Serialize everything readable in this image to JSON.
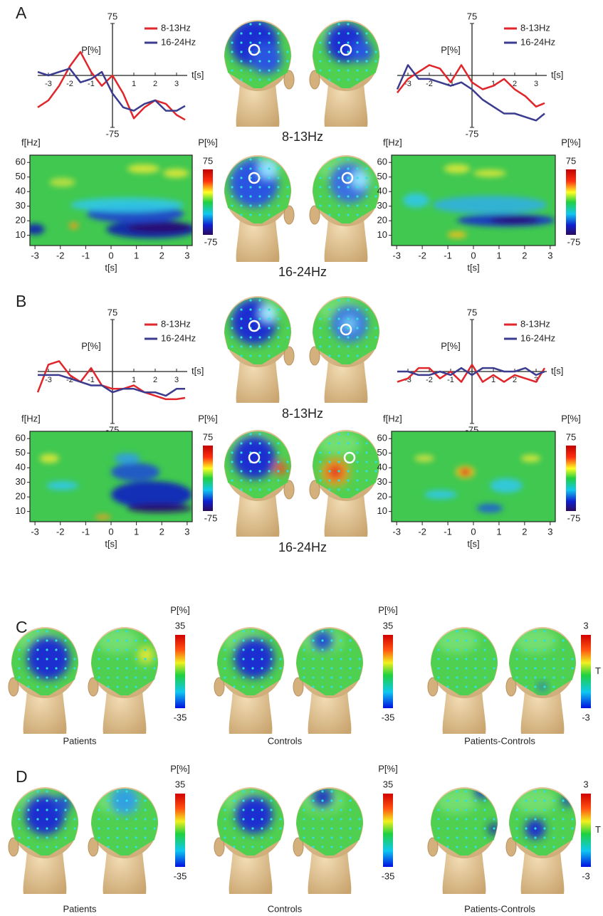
{
  "panels": [
    "A",
    "B",
    "C",
    "D"
  ],
  "band_captions": [
    "8-13Hz",
    "16-24Hz"
  ],
  "group_captions": [
    "Patients",
    "Controls",
    "Patients-Controls"
  ],
  "chart_data": [
    {
      "type": "line",
      "ylabel": "P[%]",
      "xlabel": "t[s]",
      "xlim": [
        -3.5,
        3.5
      ],
      "ylim": [
        -75,
        75
      ],
      "xticks": [
        -3,
        -2,
        -1,
        1,
        2,
        3
      ],
      "yticks": [
        -75,
        75
      ],
      "x": [
        -3.5,
        -3,
        -2.5,
        -2,
        -1.5,
        -1,
        -0.5,
        0,
        0.5,
        1,
        1.5,
        2,
        2.5,
        3,
        3.4
      ],
      "series": [
        {
          "name": "8-13Hz",
          "color": "#e0262b",
          "values": [
            -46,
            -36,
            -15,
            13,
            34,
            5,
            -15,
            0,
            -26,
            -62,
            -46,
            -36,
            -41,
            -57,
            -64
          ]
        },
        {
          "name": "16-24Hz",
          "color": "#3b3b8f",
          "values": [
            5,
            0,
            5,
            10,
            -10,
            -5,
            5,
            -26,
            -46,
            -51,
            -41,
            -36,
            -51,
            -51,
            -44
          ]
        }
      ]
    },
    {
      "type": "line",
      "ylabel": "P[%]",
      "xlabel": "t[s]",
      "xlim": [
        -3.5,
        3.5
      ],
      "ylim": [
        -75,
        75
      ],
      "xticks": [
        -3,
        -2,
        -1,
        1,
        2,
        3
      ],
      "yticks": [
        -75,
        75
      ],
      "x": [
        -3.5,
        -3,
        -2.5,
        -2,
        -1.5,
        -1,
        -0.5,
        0,
        0.5,
        1,
        1.5,
        2,
        2.5,
        3,
        3.4
      ],
      "series": [
        {
          "name": "8-13Hz",
          "color": "#e0262b",
          "values": [
            -25,
            -5,
            5,
            15,
            10,
            -10,
            15,
            -10,
            -20,
            -15,
            -5,
            -20,
            -30,
            -45,
            -40
          ]
        },
        {
          "name": "16-24Hz",
          "color": "#3b3b8f",
          "values": [
            -20,
            15,
            -5,
            -5,
            -10,
            -15,
            -10,
            -20,
            -35,
            -45,
            -55,
            -55,
            -60,
            -65,
            -55
          ]
        }
      ]
    },
    {
      "type": "heatmap",
      "xlabel": "t[s]",
      "ylabel": "f[Hz]",
      "xlim": [
        -3.2,
        3.2
      ],
      "ylim": [
        3,
        65
      ],
      "xticks": [
        -3,
        -2,
        -1,
        0,
        1,
        2,
        3
      ],
      "yticks": [
        10,
        20,
        30,
        40,
        50,
        60
      ],
      "colorbar": {
        "label": "P[%]",
        "clim": [
          -75,
          75
        ],
        "ticks": [
          -75,
          75
        ]
      }
    },
    {
      "type": "heatmap",
      "xlabel": "t[s]",
      "ylabel": "f[Hz]",
      "xlim": [
        -3.2,
        3.2
      ],
      "ylim": [
        3,
        65
      ],
      "xticks": [
        -3,
        -2,
        -1,
        0,
        1,
        2,
        3
      ],
      "yticks": [
        10,
        20,
        30,
        40,
        50,
        60
      ],
      "colorbar": {
        "label": "P[%]",
        "clim": [
          -75,
          75
        ],
        "ticks": [
          -75,
          75
        ]
      }
    },
    {
      "type": "line",
      "ylabel": "P[%]",
      "xlabel": "t[s]",
      "xlim": [
        -3.5,
        3.5
      ],
      "ylim": [
        -75,
        75
      ],
      "xticks": [
        -3,
        -2,
        -1,
        1,
        2,
        3
      ],
      "yticks": [
        -75,
        75
      ],
      "x": [
        -3.5,
        -3,
        -2.5,
        -2,
        -1.5,
        -1,
        -0.5,
        0,
        0.5,
        1,
        1.5,
        2,
        2.5,
        3,
        3.4
      ],
      "series": [
        {
          "name": "8-13Hz",
          "color": "#e0262b",
          "values": [
            -30,
            10,
            15,
            -5,
            -15,
            5,
            -20,
            -25,
            -25,
            -20,
            -30,
            -35,
            -40,
            -40,
            -38
          ]
        },
        {
          "name": "16-24Hz",
          "color": "#3b3b8f",
          "values": [
            -5,
            -5,
            -5,
            -10,
            -15,
            -20,
            -20,
            -30,
            -25,
            -25,
            -30,
            -30,
            -35,
            -25,
            -25
          ]
        }
      ]
    },
    {
      "type": "line",
      "ylabel": "P[%]",
      "xlabel": "t[s]",
      "xlim": [
        -3.5,
        3.5
      ],
      "ylim": [
        -75,
        75
      ],
      "xticks": [
        -3,
        -2,
        -1,
        1,
        2,
        3
      ],
      "yticks": [
        -75,
        75
      ],
      "x": [
        -3.5,
        -3,
        -2.5,
        -2,
        -1.5,
        -1,
        -0.5,
        0,
        0.5,
        1,
        1.5,
        2,
        2.5,
        3,
        3.4
      ],
      "series": [
        {
          "name": "8-13Hz",
          "color": "#e0262b",
          "values": [
            -15,
            -10,
            5,
            5,
            -10,
            0,
            -15,
            10,
            -15,
            -5,
            -15,
            -5,
            -10,
            -15,
            5
          ]
        },
        {
          "name": "16-24Hz",
          "color": "#3b3b8f",
          "values": [
            0,
            0,
            -5,
            -5,
            0,
            -5,
            5,
            -5,
            5,
            5,
            0,
            0,
            5,
            -5,
            0
          ]
        }
      ]
    },
    {
      "type": "heatmap",
      "xlabel": "t[s]",
      "ylabel": "f[Hz]",
      "xlim": [
        -3.2,
        3.2
      ],
      "ylim": [
        3,
        65
      ],
      "xticks": [
        -3,
        -2,
        -1,
        0,
        1,
        2,
        3
      ],
      "yticks": [
        10,
        20,
        30,
        40,
        50,
        60
      ],
      "colorbar": {
        "label": "P[%]",
        "clim": [
          -75,
          75
        ],
        "ticks": [
          -75,
          75
        ]
      }
    },
    {
      "type": "heatmap",
      "xlabel": "t[s]",
      "ylabel": "f[Hz]",
      "xlim": [
        -3.2,
        3.2
      ],
      "ylim": [
        3,
        65
      ],
      "xticks": [
        -3,
        -2,
        -1,
        0,
        1,
        2,
        3
      ],
      "yticks": [
        10,
        20,
        30,
        40,
        50,
        60
      ],
      "colorbar": {
        "label": "P[%]",
        "clim": [
          -75,
          75
        ],
        "ticks": [
          -75,
          75
        ]
      }
    },
    {
      "type": "colorbar",
      "label": "P[%]",
      "clim": [
        -35,
        35
      ],
      "ticks": [
        -35,
        35
      ]
    },
    {
      "type": "colorbar",
      "label": "P[%]",
      "clim": [
        -35,
        35
      ],
      "ticks": [
        -35,
        35
      ]
    },
    {
      "type": "colorbar",
      "label": "T",
      "clim": [
        -3,
        3
      ],
      "ticks": [
        -3,
        3
      ]
    },
    {
      "type": "colorbar",
      "label": "P[%]",
      "clim": [
        -35,
        35
      ],
      "ticks": [
        -35,
        35
      ]
    },
    {
      "type": "colorbar",
      "label": "P[%]",
      "clim": [
        -35,
        35
      ],
      "ticks": [
        -35,
        35
      ]
    },
    {
      "type": "colorbar",
      "label": "T",
      "clim": [
        -3,
        3
      ],
      "ticks": [
        -3,
        3
      ]
    }
  ]
}
